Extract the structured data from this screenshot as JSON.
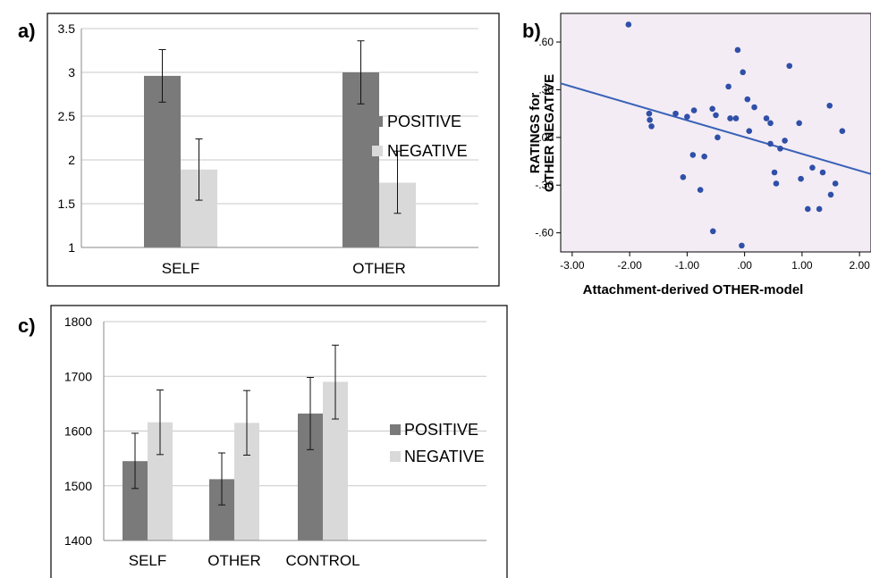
{
  "labels": {
    "a": "a)",
    "b": "b)",
    "c": "c)"
  },
  "colors": {
    "positive": "#7a7a7a",
    "negative": "#d9d9d9",
    "scatter_bg": "#f3ecf4",
    "points": "#2f4fa8",
    "fit_line": "#3a62b8"
  },
  "chart_data": [
    {
      "panel": "a",
      "type": "bar",
      "categories": [
        "SELF",
        "OTHER"
      ],
      "series": [
        {
          "name": "POSITIVE",
          "values": [
            2.96,
            3.0
          ],
          "error": [
            [
              2.66,
              3.26
            ],
            [
              2.64,
              3.36
            ]
          ]
        },
        {
          "name": "NEGATIVE",
          "values": [
            1.89,
            1.74
          ],
          "error": [
            [
              1.54,
              2.24
            ],
            [
              1.39,
              2.1
            ]
          ]
        }
      ],
      "ylim": [
        1,
        3.5
      ],
      "yticks": [
        "1",
        "1.5",
        "2",
        "2.5",
        "3",
        "3.5"
      ],
      "ytick_values": [
        1,
        1.5,
        2,
        2.5,
        3,
        3.5
      ],
      "grid": true,
      "legend": "right"
    },
    {
      "panel": "b",
      "type": "scatter",
      "xlabel": "Attachment-derived OTHER-model",
      "ylabel": [
        "RATINGS for",
        "OTHER NEGATIVE"
      ],
      "xlim": [
        -3.2,
        2.2
      ],
      "ylim": [
        -0.72,
        0.78
      ],
      "xticks": [
        "-3.00",
        "-2.00",
        "-1.00",
        ".00",
        "1.00",
        "2.00"
      ],
      "xtick_values": [
        -3,
        -2,
        -1,
        0,
        1,
        2
      ],
      "yticks": [
        ".60",
        ".30",
        ".00",
        "-.30",
        "-.60"
      ],
      "ytick_values": [
        0.6,
        0.3,
        0,
        -0.3,
        -0.6
      ],
      "fit_line": {
        "x": [
          -3.2,
          2.2
        ],
        "y": [
          0.34,
          -0.23
        ]
      },
      "points": [
        [
          -2.02,
          0.71
        ],
        [
          -1.66,
          0.15
        ],
        [
          -1.65,
          0.11
        ],
        [
          -1.62,
          0.07
        ],
        [
          -1.2,
          0.15
        ],
        [
          -1.0,
          0.13
        ],
        [
          -0.88,
          0.17
        ],
        [
          -0.9,
          -0.11
        ],
        [
          -0.77,
          -0.33
        ],
        [
          -0.7,
          -0.12
        ],
        [
          -1.07,
          -0.25
        ],
        [
          -0.56,
          0.18
        ],
        [
          -0.5,
          0.14
        ],
        [
          -0.47,
          0.0
        ],
        [
          -0.55,
          -0.59
        ],
        [
          -0.28,
          0.32
        ],
        [
          -0.25,
          0.12
        ],
        [
          -0.15,
          0.12
        ],
        [
          -0.12,
          0.55
        ],
        [
          -0.03,
          0.41
        ],
        [
          0.05,
          0.24
        ],
        [
          0.08,
          0.04
        ],
        [
          0.17,
          0.19
        ],
        [
          -0.05,
          -0.68
        ],
        [
          0.38,
          0.12
        ],
        [
          0.45,
          0.09
        ],
        [
          0.45,
          -0.04
        ],
        [
          0.52,
          -0.22
        ],
        [
          0.55,
          -0.29
        ],
        [
          0.62,
          -0.07
        ],
        [
          0.7,
          -0.02
        ],
        [
          0.78,
          0.45
        ],
        [
          0.95,
          0.09
        ],
        [
          0.98,
          -0.26
        ],
        [
          1.1,
          -0.45
        ],
        [
          1.18,
          -0.19
        ],
        [
          1.3,
          -0.45
        ],
        [
          1.36,
          -0.22
        ],
        [
          1.48,
          0.2
        ],
        [
          1.5,
          -0.36
        ],
        [
          1.58,
          -0.29
        ],
        [
          1.7,
          0.04
        ]
      ]
    },
    {
      "panel": "c",
      "type": "bar",
      "categories": [
        "SELF",
        "OTHER",
        "CONTROL"
      ],
      "series": [
        {
          "name": "POSITIVE",
          "values": [
            1545,
            1512,
            1632
          ],
          "error": [
            [
              1495,
              1596
            ],
            [
              1465,
              1560
            ],
            [
              1566,
              1698
            ]
          ]
        },
        {
          "name": "NEGATIVE",
          "values": [
            1616,
            1615,
            1690
          ],
          "error": [
            [
              1557,
              1675
            ],
            [
              1556,
              1674
            ],
            [
              1622,
              1757
            ]
          ]
        }
      ],
      "ylim": [
        1400,
        1800
      ],
      "yticks": [
        "1400",
        "1500",
        "1600",
        "1700",
        "1800"
      ],
      "ytick_values": [
        1400,
        1500,
        1600,
        1700,
        1800
      ],
      "grid": true,
      "legend": "right"
    }
  ]
}
